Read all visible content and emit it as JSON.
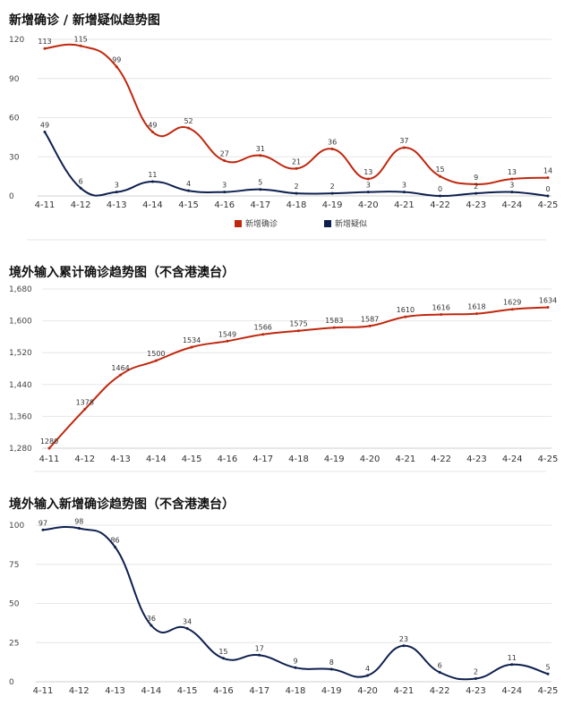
{
  "chart_data": [
    {
      "type": "line",
      "title": "新增确诊 / 新增疑似趋势图",
      "categories": [
        "4-11",
        "4-12",
        "4-13",
        "4-14",
        "4-15",
        "4-16",
        "4-17",
        "4-18",
        "4-19",
        "4-20",
        "4-21",
        "4-22",
        "4-23",
        "4-24",
        "4-25"
      ],
      "series": [
        {
          "name": "新增确诊",
          "color": "#c0270e",
          "values": [
            113,
            115,
            99,
            49,
            52,
            27,
            31,
            21,
            36,
            13,
            37,
            15,
            9,
            13,
            14
          ]
        },
        {
          "name": "新增疑似",
          "color": "#0d1f4e",
          "values": [
            49,
            6,
            3,
            11,
            4,
            3,
            5,
            2,
            2,
            3,
            3,
            0,
            2,
            3,
            0
          ]
        }
      ],
      "yticks": [
        "0",
        "30",
        "60",
        "90",
        "120"
      ],
      "ylim": [
        0,
        120
      ],
      "legend": "bottom",
      "grid": true
    },
    {
      "type": "line",
      "title": "境外输入累计确诊趋势图（不含港澳台）",
      "categories": [
        "4-11",
        "4-12",
        "4-13",
        "4-14",
        "4-15",
        "4-16",
        "4-17",
        "4-18",
        "4-19",
        "4-20",
        "4-21",
        "4-22",
        "4-23",
        "4-24",
        "4-25"
      ],
      "series": [
        {
          "color": "#c0270e",
          "values": [
            1280,
            1378,
            1464,
            1500,
            1534,
            1549,
            1566,
            1575,
            1583,
            1587,
            1610,
            1616,
            1618,
            1629,
            1634
          ]
        }
      ],
      "yticks": [
        "1,280",
        "1,360",
        "1,440",
        "1,520",
        "1,600",
        "1,680"
      ],
      "ylim": [
        1280,
        1680
      ],
      "grid": true
    },
    {
      "type": "line",
      "title": "境外输入新增确诊趋势图（不含港澳台）",
      "categories": [
        "4-11",
        "4-12",
        "4-13",
        "4-14",
        "4-15",
        "4-16",
        "4-17",
        "4-18",
        "4-19",
        "4-20",
        "4-21",
        "4-22",
        "4-23",
        "4-24",
        "4-25"
      ],
      "series": [
        {
          "color": "#0d1f4e",
          "values": [
            97,
            98,
            86,
            36,
            34,
            15,
            17,
            9,
            8,
            4,
            23,
            6,
            2,
            11,
            5
          ]
        }
      ],
      "yticks": [
        "0",
        "25",
        "50",
        "75",
        "100"
      ],
      "ylim": [
        0,
        100
      ],
      "grid": true
    }
  ]
}
